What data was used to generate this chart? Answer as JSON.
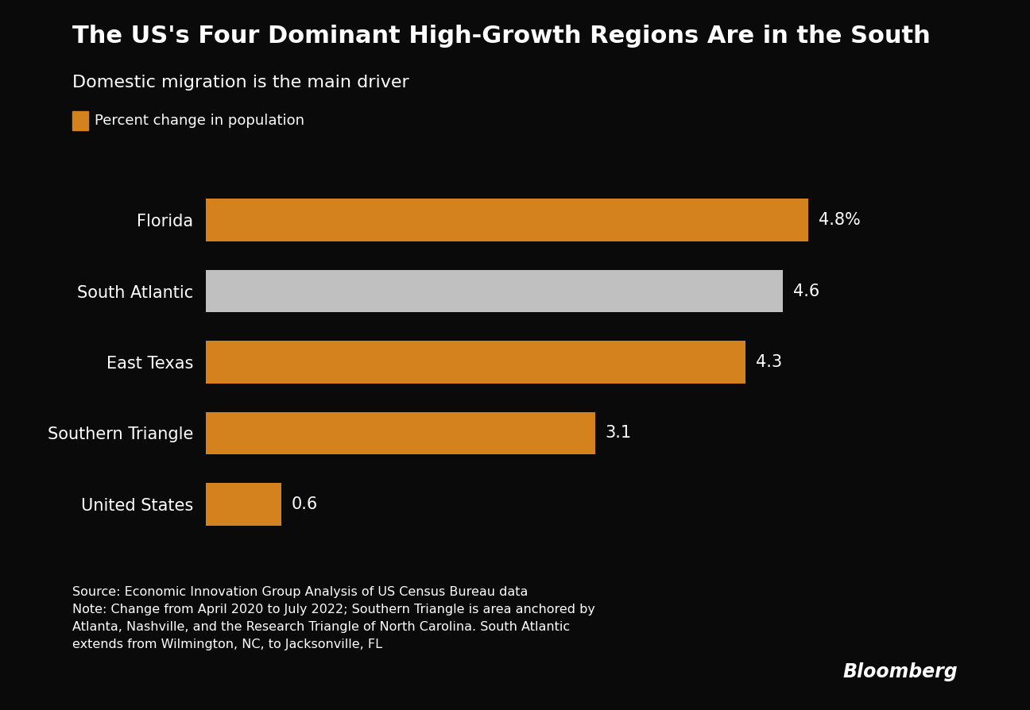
{
  "title": "The US's Four Dominant High-Growth Regions Are in the South",
  "subtitle": "Domestic migration is the main driver",
  "legend_label": "Percent change in population",
  "categories": [
    "Florida",
    "South Atlantic",
    "East Texas",
    "Southern Triangle",
    "United States"
  ],
  "values": [
    4.8,
    4.6,
    4.3,
    3.1,
    0.6
  ],
  "bar_colors": [
    "#D4821E",
    "#C0C0C0",
    "#D4821E",
    "#D4821E",
    "#D4821E"
  ],
  "labels": [
    "4.8%",
    "4.6",
    "4.3",
    "3.1",
    "0.6"
  ],
  "background_color": "#0a0a0a",
  "text_color": "#ffffff",
  "source_text": "Source: Economic Innovation Group Analysis of US Census Bureau data\nNote: Change from April 2020 to July 2022; Southern Triangle is area anchored by\nAtlanta, Nashville, and the Research Triangle of North Carolina. South Atlantic\nextends from Wilmington, NC, to Jacksonville, FL",
  "bloomberg_text": "Bloomberg",
  "xlim": [
    0,
    5.5
  ],
  "title_fontsize": 22,
  "subtitle_fontsize": 16,
  "label_fontsize": 15,
  "tick_fontsize": 15,
  "source_fontsize": 11.5,
  "legend_fontsize": 13,
  "orange_color": "#D4821E",
  "gray_color": "#C0C0C0"
}
